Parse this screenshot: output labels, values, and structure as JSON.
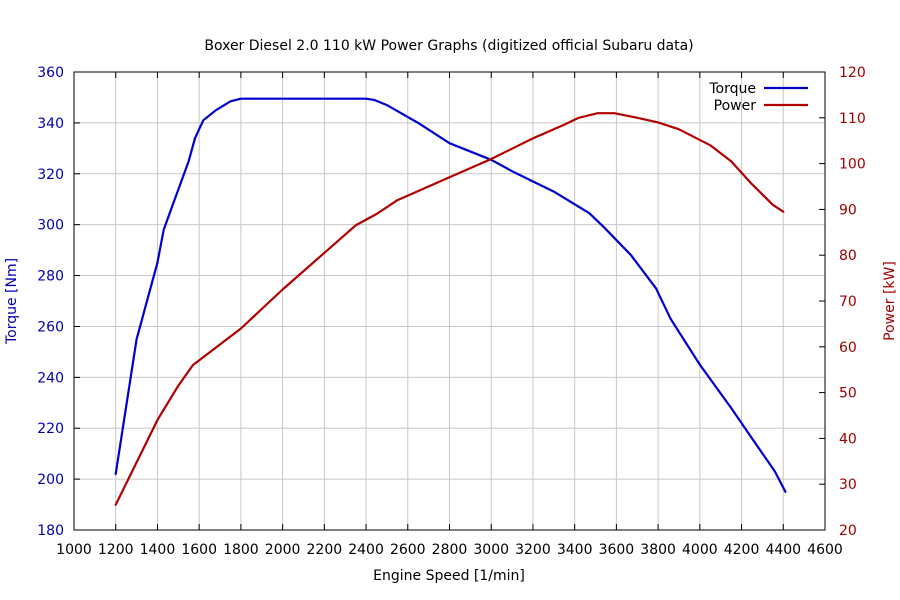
{
  "chart_data": {
    "type": "line",
    "title": "Boxer Diesel 2.0 110 kW Power Graphs (digitized official Subaru data)",
    "xlabel": "Engine Speed [1/min]",
    "ylabel_left": "Torque [Nm]",
    "ylabel_right": "Power [kW]",
    "xlim": [
      1000,
      4600
    ],
    "ylim_left": [
      180,
      360
    ],
    "ylim_right": [
      20,
      120
    ],
    "x_ticks": [
      1000,
      1200,
      1400,
      1600,
      1800,
      2000,
      2200,
      2400,
      2600,
      2800,
      3000,
      3200,
      3400,
      3600,
      3800,
      4000,
      4200,
      4400,
      4600
    ],
    "y_ticks_left": [
      180,
      200,
      220,
      240,
      260,
      280,
      300,
      320,
      340,
      360
    ],
    "y_ticks_right": [
      20,
      30,
      40,
      50,
      60,
      70,
      80,
      90,
      100,
      110,
      120
    ],
    "grid": true,
    "legend_position": "top-right",
    "colors": {
      "torque": "#0000cc",
      "power": "#b00000",
      "left_axis": "#0000b0",
      "right_axis": "#a00000"
    },
    "series": [
      {
        "name": "Torque",
        "axis": "left",
        "x": [
          1200,
          1300,
          1400,
          1430,
          1470,
          1550,
          1580,
          1620,
          1680,
          1750,
          1800,
          1900,
          2200,
          2400,
          2440,
          2500,
          2650,
          2800,
          3000,
          3100,
          3300,
          3470,
          3540,
          3670,
          3790,
          3860,
          4000,
          4150,
          4250,
          4360,
          4410
        ],
        "values": [
          202,
          255,
          285,
          298,
          307,
          325,
          334,
          341,
          345,
          348.5,
          349.5,
          349.5,
          349.5,
          349.5,
          349,
          347,
          340,
          332,
          325.5,
          321,
          313,
          304.5,
          299,
          288,
          275,
          263,
          245,
          228,
          216,
          203,
          195
        ]
      },
      {
        "name": "Power",
        "axis": "right",
        "x": [
          1200,
          1400,
          1500,
          1570,
          1800,
          2000,
          2200,
          2350,
          2450,
          2550,
          2800,
          3000,
          3200,
          3350,
          3420,
          3510,
          3590,
          3700,
          3800,
          3900,
          4050,
          4150,
          4250,
          4350,
          4400
        ],
        "values": [
          25.5,
          44,
          51.5,
          56,
          64,
          72.5,
          80.5,
          86.5,
          89,
          92,
          97,
          101,
          105.5,
          108.5,
          110,
          111,
          111,
          110,
          109,
          107.5,
          104,
          100.5,
          95.5,
          91,
          89.5
        ]
      }
    ]
  }
}
